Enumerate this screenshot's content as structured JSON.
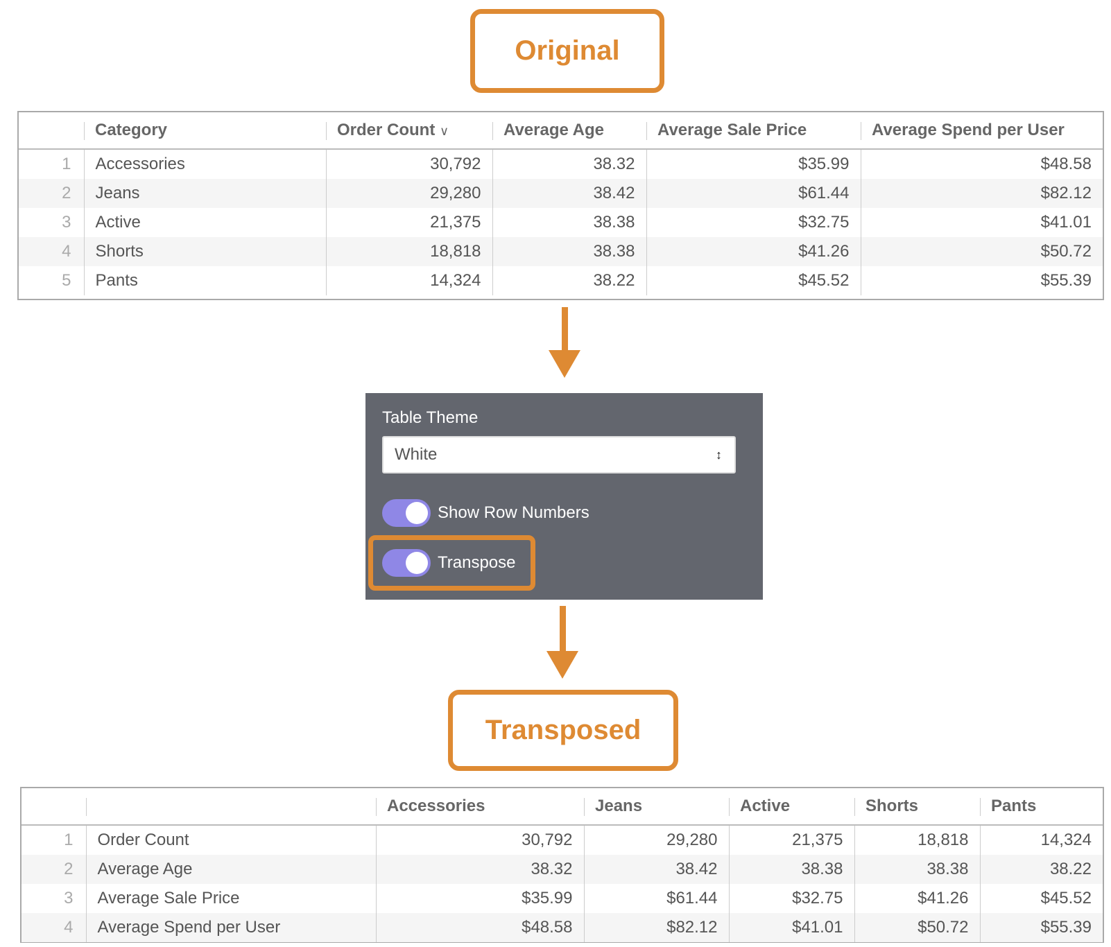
{
  "original_label": "Original",
  "transposed_label": "Transposed",
  "original_table": {
    "columns": [
      "Category",
      "Order Count",
      "Average Age",
      "Average Sale Price",
      "Average Spend per User"
    ],
    "sort_icon": "chevron-down-icon",
    "rows": [
      [
        "1",
        "Accessories",
        "30,792",
        "38.32",
        "$35.99",
        "$48.58"
      ],
      [
        "2",
        "Jeans",
        "29,280",
        "38.42",
        "$61.44",
        "$82.12"
      ],
      [
        "3",
        "Active",
        "21,375",
        "38.38",
        "$32.75",
        "$41.01"
      ],
      [
        "4",
        "Shorts",
        "18,818",
        "38.38",
        "$41.26",
        "$50.72"
      ],
      [
        "5",
        "Pants",
        "14,324",
        "38.22",
        "$45.52",
        "$55.39"
      ]
    ]
  },
  "settings": {
    "table_theme_label": "Table Theme",
    "table_theme_value": "White",
    "show_row_numbers": {
      "label": "Show Row Numbers",
      "on": true
    },
    "transpose": {
      "label": "Transpose",
      "on": true
    },
    "toggle_color": "#8f87e6"
  },
  "transposed_table": {
    "columns": [
      "",
      "Accessories",
      "Jeans",
      "Active",
      "Shorts",
      "Pants"
    ],
    "rows": [
      [
        "1",
        "Order Count",
        "30,792",
        "29,280",
        "21,375",
        "18,818",
        "14,324"
      ],
      [
        "2",
        "Average Age",
        "38.32",
        "38.42",
        "38.38",
        "38.38",
        "38.22"
      ],
      [
        "3",
        "Average Sale Price",
        "$35.99",
        "$61.44",
        "$32.75",
        "$41.26",
        "$45.52"
      ],
      [
        "4",
        "Average Spend per User",
        "$48.58",
        "$82.12",
        "$41.01",
        "$50.72",
        "$55.39"
      ]
    ]
  },
  "accent_color": "#de8a33"
}
